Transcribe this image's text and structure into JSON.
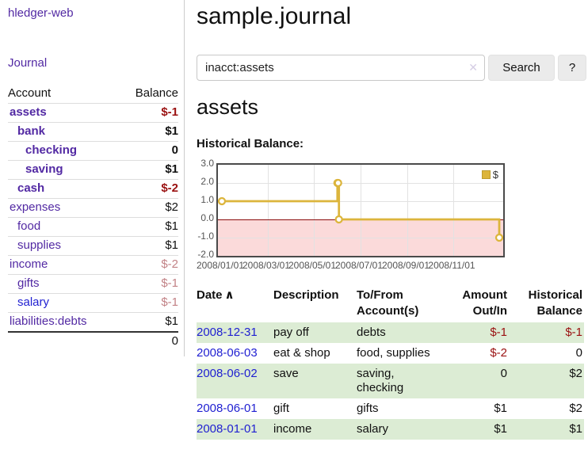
{
  "app_title": "hledger-web",
  "colors": {
    "link_purple": "#5229a3",
    "link_blue": "#1f1fd1",
    "negative_red": "#9a1111",
    "negative_faded": "#c28286",
    "row_green": "#dcecd4",
    "chart_line": "#dcb53c",
    "chart_negative_bg": "#fbdada",
    "chart_zero_line": "#8c0d0d",
    "chart_grid": "#e2e2e2",
    "chart_border": "#4a4a4a",
    "axis_text": "#545454",
    "button_bg": "#ebebeb",
    "divider": "#cccccc",
    "row_border": "#dddddd"
  },
  "sidebar": {
    "journal_link": "Journal",
    "table": {
      "account_header": "Account",
      "balance_header": "Balance",
      "rows": [
        {
          "name": "assets",
          "balance": "$-1",
          "depth": 1,
          "bold": true,
          "name_color": "purple",
          "balance_color": "red"
        },
        {
          "name": "bank",
          "balance": "$1",
          "depth": 2,
          "bold": true,
          "name_color": "purple",
          "balance_color": "black"
        },
        {
          "name": "checking",
          "balance": "0",
          "depth": 3,
          "bold": true,
          "name_color": "purple",
          "balance_color": "black"
        },
        {
          "name": "saving",
          "balance": "$1",
          "depth": 3,
          "bold": true,
          "name_color": "purple",
          "balance_color": "black"
        },
        {
          "name": "cash",
          "balance": "$-2",
          "depth": 2,
          "bold": true,
          "name_color": "purple",
          "balance_color": "red"
        },
        {
          "name": "expenses",
          "balance": "$2",
          "depth": 1,
          "bold": false,
          "name_color": "purple",
          "balance_color": "black"
        },
        {
          "name": "food",
          "balance": "$1",
          "depth": 2,
          "bold": false,
          "name_color": "purple",
          "balance_color": "black"
        },
        {
          "name": "supplies",
          "balance": "$1",
          "depth": 2,
          "bold": false,
          "name_color": "purple",
          "balance_color": "black"
        },
        {
          "name": "income",
          "balance": "$-2",
          "depth": 1,
          "bold": false,
          "name_color": "purple",
          "balance_color": "faded"
        },
        {
          "name": "gifts",
          "balance": "$-1",
          "depth": 2,
          "bold": false,
          "name_color": "purple",
          "balance_color": "faded"
        },
        {
          "name": "salary",
          "balance": "$-1",
          "depth": 2,
          "bold": false,
          "name_color": "blue",
          "balance_color": "faded"
        },
        {
          "name": "liabilities:debts",
          "balance": "$1",
          "depth": 1,
          "bold": false,
          "name_color": "purple",
          "balance_color": "black"
        }
      ],
      "total": "0"
    }
  },
  "page": {
    "title": "sample.journal",
    "account_title": "assets",
    "chart_heading": "Historical Balance:"
  },
  "search": {
    "value": "inacct:assets",
    "clear_icon": "✕",
    "button_label": "Search",
    "help_label": "?"
  },
  "chart_data": {
    "type": "line",
    "step": true,
    "title": "Historical Balance:",
    "series": [
      {
        "name": "$",
        "points": [
          [
            "2008-01-01",
            1
          ],
          [
            "2008-06-01",
            2
          ],
          [
            "2008-06-02",
            2
          ],
          [
            "2008-06-03",
            0
          ],
          [
            "2008-12-31",
            -1
          ]
        ]
      }
    ],
    "ylim": [
      -2,
      3
    ],
    "y_ticks": [
      "3.0",
      "2.0",
      "1.0",
      "0.0",
      "-1.0",
      "-2.0"
    ],
    "x_ticks": [
      "2008/01/01",
      "2008/03/01",
      "2008/05/01",
      "2008/07/01",
      "2008/09/01",
      "2008/11/01"
    ],
    "x_range": [
      "2008-01-01",
      "2008-12-31"
    ],
    "legend": [
      {
        "label": "$"
      }
    ],
    "legend_position": "top-right",
    "grid": true,
    "negative_region_shaded": true
  },
  "register": {
    "headers": {
      "date": "Date",
      "sort_indicator": "∧",
      "description": "Description",
      "tofrom": "To/From Account(s)",
      "amount": "Amount Out/In",
      "balance": "Historical Balance"
    },
    "rows": [
      {
        "date": "2008-12-31",
        "description": "pay off",
        "accounts": "debts",
        "amount": "$-1",
        "balance": "$-1",
        "amount_negative": true,
        "balance_negative": true,
        "shaded": true
      },
      {
        "date": "2008-06-03",
        "description": "eat & shop",
        "accounts": "food, supplies",
        "amount": "$-2",
        "balance": "0",
        "amount_negative": true,
        "balance_negative": false,
        "shaded": false
      },
      {
        "date": "2008-06-02",
        "description": "save",
        "accounts": "saving, checking",
        "amount": "0",
        "balance": "$2",
        "amount_negative": false,
        "balance_negative": false,
        "shaded": true
      },
      {
        "date": "2008-06-01",
        "description": "gift",
        "accounts": "gifts",
        "amount": "$1",
        "balance": "$2",
        "amount_negative": false,
        "balance_negative": false,
        "shaded": false
      },
      {
        "date": "2008-01-01",
        "description": "income",
        "accounts": "salary",
        "amount": "$1",
        "balance": "$1",
        "amount_negative": false,
        "balance_negative": false,
        "shaded": true
      }
    ]
  }
}
